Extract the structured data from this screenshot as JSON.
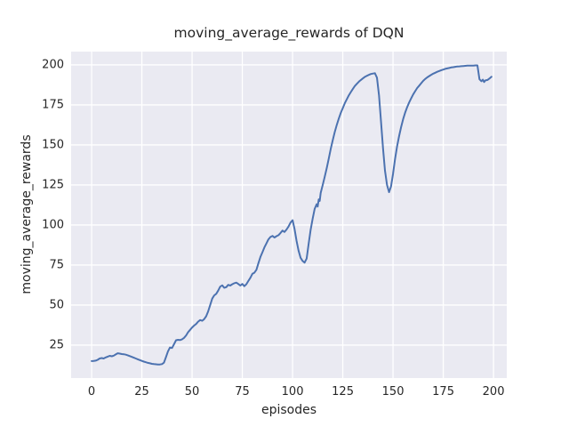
{
  "figure": {
    "title": "moving_average_rewards of DQN",
    "background_color": "#ffffff"
  },
  "chart_data": {
    "type": "line",
    "title": "moving_average_rewards of DQN",
    "xlabel": "episodes",
    "ylabel": "moving_average_rewards",
    "xlim": [
      -10.2,
      206.6
    ],
    "ylim": [
      4.4,
      208.3
    ],
    "xticks": [
      0,
      25,
      50,
      75,
      100,
      125,
      150,
      175,
      200
    ],
    "yticks": [
      25,
      50,
      75,
      100,
      125,
      150,
      175,
      200
    ],
    "grid": true,
    "legend": false,
    "style": {
      "plot_background": "#EAEAF2",
      "grid_color": "#FFFFFF",
      "line_color": "#4C72B0",
      "text_color": "#262626",
      "line_width": 2
    },
    "series": [
      {
        "name": "moving_average_rewards of DQN",
        "points": [
          [
            0,
            15.0
          ],
          [
            1,
            15.1
          ],
          [
            2,
            15.3
          ],
          [
            3,
            15.8
          ],
          [
            4,
            16.6
          ],
          [
            5,
            16.9
          ],
          [
            6,
            16.6
          ],
          [
            7,
            17.3
          ],
          [
            8,
            17.8
          ],
          [
            9,
            18.3
          ],
          [
            10,
            18.0
          ],
          [
            11,
            18.4
          ],
          [
            12,
            19.2
          ],
          [
            13,
            19.9
          ],
          [
            14,
            19.7
          ],
          [
            15,
            19.4
          ],
          [
            16,
            19.3
          ],
          [
            17,
            19.0
          ],
          [
            18,
            18.6
          ],
          [
            19,
            18.1
          ],
          [
            20,
            17.6
          ],
          [
            21,
            17.1
          ],
          [
            22,
            16.6
          ],
          [
            23,
            16.1
          ],
          [
            24,
            15.6
          ],
          [
            25,
            15.1
          ],
          [
            26,
            14.7
          ],
          [
            27,
            14.3
          ],
          [
            28,
            13.9
          ],
          [
            29,
            13.6
          ],
          [
            30,
            13.3
          ],
          [
            31,
            13.1
          ],
          [
            32,
            13.0
          ],
          [
            33,
            12.9
          ],
          [
            34,
            12.9
          ],
          [
            35,
            13.1
          ],
          [
            36,
            14.0
          ],
          [
            37,
            17.5
          ],
          [
            38,
            21.0
          ],
          [
            39,
            23.5
          ],
          [
            40,
            23.2
          ],
          [
            41,
            25.5
          ],
          [
            42,
            28.0
          ],
          [
            43,
            28.3
          ],
          [
            44,
            28.1
          ],
          [
            45,
            28.6
          ],
          [
            46,
            29.5
          ],
          [
            47,
            31.0
          ],
          [
            48,
            33.0
          ],
          [
            49,
            34.5
          ],
          [
            50,
            36.0
          ],
          [
            51,
            37.2
          ],
          [
            52,
            38.2
          ],
          [
            53,
            39.6
          ],
          [
            54,
            40.6
          ],
          [
            55,
            40.2
          ],
          [
            56,
            41.2
          ],
          [
            57,
            43.0
          ],
          [
            58,
            46.0
          ],
          [
            59,
            50.0
          ],
          [
            60,
            54.0
          ],
          [
            61,
            56.0
          ],
          [
            62,
            57.0
          ],
          [
            63,
            59.0
          ],
          [
            64,
            61.5
          ],
          [
            65,
            62.3
          ],
          [
            66,
            60.8
          ],
          [
            67,
            61.2
          ],
          [
            68,
            62.6
          ],
          [
            69,
            62.2
          ],
          [
            70,
            63.0
          ],
          [
            71,
            63.6
          ],
          [
            72,
            64.0
          ],
          [
            73,
            63.2
          ],
          [
            74,
            62.2
          ],
          [
            75,
            63.2
          ],
          [
            76,
            61.8
          ],
          [
            77,
            63.0
          ],
          [
            78,
            65.0
          ],
          [
            79,
            67.0
          ],
          [
            80,
            69.5
          ],
          [
            81,
            70.2
          ],
          [
            82,
            72.0
          ],
          [
            83,
            76.0
          ],
          [
            84,
            80.0
          ],
          [
            85,
            83.0
          ],
          [
            86,
            86.0
          ],
          [
            87,
            88.5
          ],
          [
            88,
            91.0
          ],
          [
            89,
            92.5
          ],
          [
            90,
            93.2
          ],
          [
            91,
            92.2
          ],
          [
            92,
            93.0
          ],
          [
            93,
            93.6
          ],
          [
            94,
            95.0
          ],
          [
            95,
            96.5
          ],
          [
            96,
            95.6
          ],
          [
            97,
            97.2
          ],
          [
            98,
            99.0
          ],
          [
            99,
            101.5
          ],
          [
            100,
            103.0
          ],
          [
            101,
            97.5
          ],
          [
            102,
            90.0
          ],
          [
            103,
            84.0
          ],
          [
            104,
            79.5
          ],
          [
            105,
            77.5
          ],
          [
            106,
            76.5
          ],
          [
            107,
            79.0
          ],
          [
            108,
            88.0
          ],
          [
            109,
            97.0
          ],
          [
            110,
            104.0
          ],
          [
            111,
            110.0
          ],
          [
            112,
            113.0
          ],
          [
            112.5,
            111.5
          ],
          [
            113,
            116.0
          ],
          [
            113.5,
            115.0
          ],
          [
            114,
            120.0
          ],
          [
            115,
            125.0
          ],
          [
            116,
            130.0
          ],
          [
            117,
            135.5
          ],
          [
            118,
            141.5
          ],
          [
            119,
            147.5
          ],
          [
            120,
            153.0
          ],
          [
            121,
            158.0
          ],
          [
            122,
            162.5
          ],
          [
            123,
            166.5
          ],
          [
            124,
            170.0
          ],
          [
            125,
            173.0
          ],
          [
            126,
            176.0
          ],
          [
            127,
            178.5
          ],
          [
            128,
            181.0
          ],
          [
            129,
            183.0
          ],
          [
            130,
            185.0
          ],
          [
            131,
            186.8
          ],
          [
            132,
            188.2
          ],
          [
            133,
            189.5
          ],
          [
            134,
            190.6
          ],
          [
            135,
            191.6
          ],
          [
            136,
            192.5
          ],
          [
            137,
            193.2
          ],
          [
            138,
            193.8
          ],
          [
            139,
            194.3
          ],
          [
            140,
            194.6
          ],
          [
            141,
            194.8
          ],
          [
            142,
            192.0
          ],
          [
            143,
            181.0
          ],
          [
            144,
            165.0
          ],
          [
            145,
            148.0
          ],
          [
            146,
            134.0
          ],
          [
            147,
            125.0
          ],
          [
            148,
            120.5
          ],
          [
            149,
            124.0
          ],
          [
            150,
            132.0
          ],
          [
            151,
            141.0
          ],
          [
            152,
            149.0
          ],
          [
            153,
            155.5
          ],
          [
            154,
            161.0
          ],
          [
            155,
            166.0
          ],
          [
            156,
            170.0
          ],
          [
            157,
            173.5
          ],
          [
            158,
            176.5
          ],
          [
            159,
            179.0
          ],
          [
            160,
            181.5
          ],
          [
            161,
            183.5
          ],
          [
            162,
            185.5
          ],
          [
            163,
            187.0
          ],
          [
            164,
            188.5
          ],
          [
            165,
            190.0
          ],
          [
            166,
            191.2
          ],
          [
            167,
            192.2
          ],
          [
            168,
            193.0
          ],
          [
            169,
            193.8
          ],
          [
            170,
            194.5
          ],
          [
            171,
            195.1
          ],
          [
            172,
            195.7
          ],
          [
            173,
            196.2
          ],
          [
            174,
            196.7
          ],
          [
            175,
            197.1
          ],
          [
            176,
            197.5
          ],
          [
            177,
            197.8
          ],
          [
            178,
            198.1
          ],
          [
            179,
            198.4
          ],
          [
            180,
            198.6
          ],
          [
            181,
            198.8
          ],
          [
            182,
            199.0
          ],
          [
            183,
            199.1
          ],
          [
            184,
            199.2
          ],
          [
            185,
            199.3
          ],
          [
            186,
            199.4
          ],
          [
            187,
            199.5
          ],
          [
            188,
            199.5
          ],
          [
            189,
            199.6
          ],
          [
            190,
            199.6
          ],
          [
            191,
            199.7
          ],
          [
            192,
            199.7
          ],
          [
            193,
            191.0
          ],
          [
            194,
            189.8
          ],
          [
            194.7,
            190.8
          ],
          [
            195.3,
            189.3
          ],
          [
            196,
            190.3
          ],
          [
            197,
            190.6
          ],
          [
            198,
            191.5
          ],
          [
            199,
            192.6
          ]
        ]
      }
    ]
  }
}
